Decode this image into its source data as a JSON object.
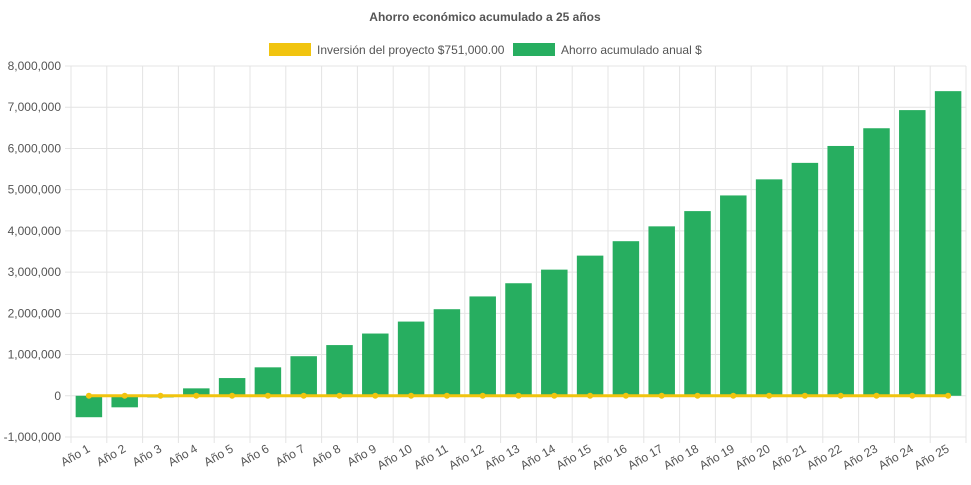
{
  "chart_data": {
    "type": "bar",
    "title": "Ahorro económico acumulado a 25 años",
    "categories": [
      "Año 1",
      "Año 2",
      "Año 3",
      "Año 4",
      "Año 5",
      "Año 6",
      "Año 7",
      "Año 8",
      "Año 9",
      "Año 10",
      "Año 11",
      "Año 12",
      "Año 13",
      "Año 14",
      "Año 15",
      "Año 16",
      "Año 17",
      "Año 18",
      "Año 19",
      "Año 20",
      "Año 21",
      "Año 22",
      "Año 23",
      "Año 24",
      "Año 25"
    ],
    "series": [
      {
        "name": "Inversión del proyecto $751,000.00",
        "type": "line",
        "color": "#F1C40F",
        "values": [
          0,
          0,
          0,
          0,
          0,
          0,
          0,
          0,
          0,
          0,
          0,
          0,
          0,
          0,
          0,
          0,
          0,
          0,
          0,
          0,
          0,
          0,
          0,
          0,
          0
        ]
      },
      {
        "name": "Ahorro acumulado anual $",
        "type": "bar",
        "color": "#27AE60",
        "values": [
          -520000,
          -280000,
          -40000,
          180000,
          430000,
          690000,
          960000,
          1230000,
          1510000,
          1800000,
          2100000,
          2410000,
          2730000,
          3060000,
          3400000,
          3750000,
          4110000,
          4480000,
          4860000,
          5250000,
          5650000,
          6060000,
          6490000,
          6930000,
          7390000
        ]
      }
    ],
    "ylim": [
      -1000000,
      8000000
    ],
    "yticks": [
      "8,000,000",
      "7,000,000",
      "6,000,000",
      "5,000,000",
      "4,000,000",
      "3,000,000",
      "2,000,000",
      "1,000,000",
      "0",
      "-1,000,000"
    ],
    "grid": true,
    "legend": "top-center"
  }
}
